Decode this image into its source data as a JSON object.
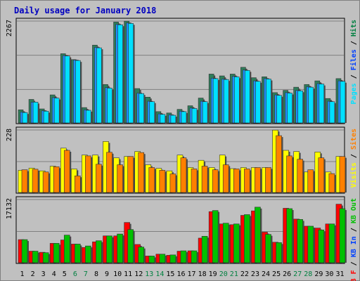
{
  "title": "Daily usage for January 2018",
  "colors": {
    "background": "#c0c0c0",
    "plot_bg": "#c0c0c0",
    "grid": "#808080",
    "title": "#0000c0",
    "hits": "#008040",
    "files": "#0040ff",
    "pages": "#00e0ff",
    "visits": "#ffff00",
    "sites": "#ff8000",
    "kb_in": "#00c000",
    "kb_out": "#00c000",
    "kb_f": "#ff0000",
    "axis_weekday": "#000000",
    "axis_weekend": "#008040"
  },
  "chart_data": [
    {
      "type": "bar",
      "panel": "top",
      "ymax_label": "2267",
      "ylim": [
        0,
        2267
      ],
      "grid": true,
      "legend_placement": "right",
      "legend": [
        {
          "text": "Pages",
          "color": "#00e0ff"
        },
        {
          "text": " / ",
          "color": "#000000"
        },
        {
          "text": "Files",
          "color": "#0040ff"
        },
        {
          "text": " / ",
          "color": "#000000"
        },
        {
          "text": "Hits",
          "color": "#008040"
        }
      ],
      "categories": [
        "1",
        "2",
        "3",
        "4",
        "5",
        "6",
        "7",
        "8",
        "9",
        "10",
        "11",
        "12",
        "13",
        "14",
        "15",
        "16",
        "17",
        "18",
        "19",
        "20",
        "21",
        "22",
        "23",
        "24",
        "25",
        "26",
        "27",
        "28",
        "29",
        "30",
        "31"
      ],
      "series": [
        {
          "name": "Hits",
          "color": "#2e7d5b",
          "values": [
            290,
            520,
            310,
            620,
            1530,
            1400,
            340,
            1720,
            850,
            2230,
            2250,
            760,
            570,
            250,
            220,
            300,
            380,
            550,
            1080,
            1040,
            1080,
            1230,
            1000,
            1020,
            670,
            720,
            790,
            850,
            930,
            540,
            980
          ]
        },
        {
          "name": "Files",
          "color": "#1e90ff",
          "values": [
            240,
            460,
            270,
            560,
            1490,
            1390,
            290,
            1670,
            780,
            2180,
            2210,
            660,
            480,
            200,
            180,
            260,
            330,
            480,
            990,
            970,
            1030,
            1170,
            930,
            980,
            620,
            670,
            720,
            800,
            870,
            480,
            930
          ]
        },
        {
          "name": "Pages",
          "color": "#00e0ff",
          "values": [
            230,
            460,
            260,
            550,
            1480,
            1380,
            280,
            1660,
            770,
            2170,
            2200,
            650,
            470,
            190,
            170,
            250,
            320,
            470,
            980,
            960,
            1020,
            1160,
            920,
            970,
            610,
            660,
            710,
            790,
            860,
            470,
            920
          ]
        }
      ]
    },
    {
      "type": "bar",
      "panel": "middle",
      "ymax_label": "228",
      "ylim": [
        0,
        228
      ],
      "grid": true,
      "legend_placement": "right",
      "legend": [
        {
          "text": "Visits",
          "color": "#ffff00"
        },
        {
          "text": " / ",
          "color": "#000000"
        },
        {
          "text": "Sites",
          "color": "#ff8000"
        }
      ],
      "categories": [
        "1",
        "2",
        "3",
        "4",
        "5",
        "6",
        "7",
        "8",
        "9",
        "10",
        "11",
        "12",
        "13",
        "14",
        "15",
        "16",
        "17",
        "18",
        "19",
        "20",
        "21",
        "22",
        "23",
        "24",
        "25",
        "26",
        "27",
        "28",
        "29",
        "30",
        "31"
      ],
      "series": [
        {
          "name": "Visits",
          "color": "#ffff00",
          "values": [
            80,
            88,
            78,
            95,
            160,
            85,
            135,
            135,
            184,
            125,
            130,
            148,
            100,
            87,
            78,
            135,
            90,
            116,
            90,
            135,
            86,
            90,
            90,
            90,
            225,
            152,
            148,
            74,
            146,
            74,
            130
          ]
        },
        {
          "name": "Sites",
          "color": "#ff8000",
          "values": [
            82,
            84,
            74,
            93,
            152,
            60,
            132,
            102,
            145,
            100,
            130,
            144,
            90,
            80,
            67,
            125,
            85,
            95,
            82,
            100,
            85,
            85,
            90,
            90,
            205,
            132,
            120,
            82,
            125,
            68,
            130
          ]
        }
      ]
    },
    {
      "type": "bar",
      "panel": "bottom",
      "ymax_label": "17132",
      "ylim": [
        0,
        17132
      ],
      "grid": true,
      "legend_placement": "right",
      "legend": [
        {
          "text": "KB F",
          "color": "#ff0000"
        },
        {
          "text": " / ",
          "color": "#000000"
        },
        {
          "text": "KB In",
          "color": "#0040ff"
        },
        {
          "text": " / ",
          "color": "#000000"
        },
        {
          "text": "KB Out",
          "color": "#00c000"
        }
      ],
      "categories": [
        "1",
        "2",
        "3",
        "4",
        "5",
        "6",
        "7",
        "8",
        "9",
        "10",
        "11",
        "12",
        "13",
        "14",
        "15",
        "16",
        "17",
        "18",
        "19",
        "20",
        "21",
        "22",
        "23",
        "24",
        "25",
        "26",
        "27",
        "28",
        "29",
        "30",
        "31"
      ],
      "series": [
        {
          "name": "KB F",
          "color": "#ff0000",
          "values": [
            6200,
            3100,
            2800,
            5200,
            6100,
            5000,
            4100,
            5600,
            7200,
            7200,
            10800,
            4900,
            1800,
            2300,
            2000,
            3100,
            3200,
            6600,
            13700,
            10400,
            10200,
            12700,
            13900,
            8200,
            5500,
            14600,
            11700,
            9800,
            9300,
            10400,
            15700
          ]
        },
        {
          "name": "KB Out",
          "color": "#00c000",
          "values": [
            6200,
            3100,
            2700,
            5200,
            7400,
            5000,
            4500,
            5900,
            7200,
            7700,
            8900,
            4200,
            1800,
            2300,
            2100,
            3200,
            3200,
            7100,
            14000,
            10600,
            10400,
            12900,
            14900,
            7600,
            5400,
            14500,
            11600,
            9800,
            8800,
            10400,
            14500
          ]
        }
      ]
    }
  ],
  "axis": {
    "days": [
      "1",
      "2",
      "3",
      "4",
      "5",
      "6",
      "7",
      "8",
      "9",
      "10",
      "11",
      "12",
      "13",
      "14",
      "15",
      "16",
      "17",
      "18",
      "19",
      "20",
      "21",
      "22",
      "23",
      "24",
      "25",
      "26",
      "27",
      "28",
      "29",
      "30",
      "31"
    ],
    "weekend": [
      "6",
      "7",
      "13",
      "14",
      "20",
      "21",
      "27",
      "28"
    ]
  }
}
